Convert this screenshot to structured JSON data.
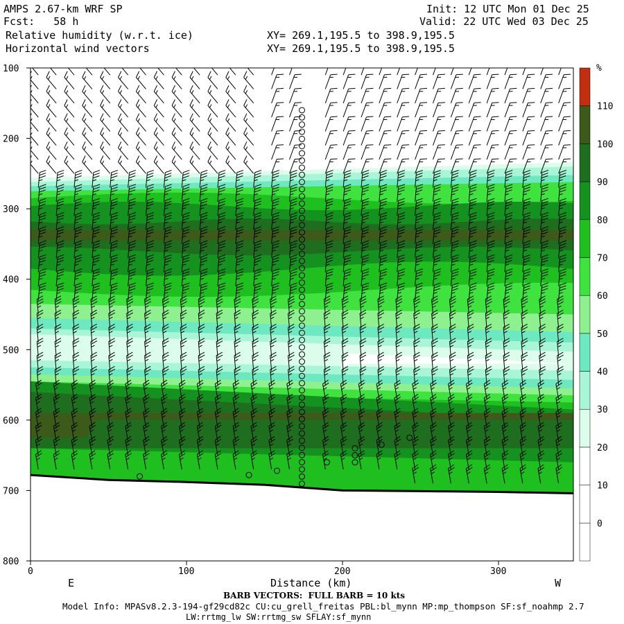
{
  "header": {
    "model": "AMPS 2.67-km WRF SP",
    "fcst": "Fcst:   58 h",
    "init": "Init: 12 UTC Mon 01 Dec 25",
    "valid": "Valid: 22 UTC Wed 03 Dec 25",
    "field1": "Relative humidity (w.r.t. ice)",
    "field2": "Horizontal wind vectors",
    "xy1": "XY= 269.1,195.5 to 398.9,195.5",
    "xy2": "XY= 269.1,195.5 to 398.9,195.5"
  },
  "footer": {
    "xlabel": "Distance (km)",
    "east": "E",
    "west": "W",
    "barb_note": "BARB VECTORS:  FULL BARB = 10 kts",
    "model_info": "Model Info: MPASv8.2.3-194-gf29cd82c CU:cu_grell_freitas PBL:bl_mynn MP:mp_thompson SF:sf_noahmp 2.7",
    "model_info2": "LW:rrtmg_lw SW:rrtmg_sw SFLAY:sf_mynn"
  },
  "chart_data": {
    "type": "cross-section (filled contour + wind barbs)",
    "xlabel": "Distance (km)",
    "xlim": [
      0,
      348
    ],
    "x_ticks": [
      0,
      100,
      200,
      300
    ],
    "ylim": [
      800,
      100
    ],
    "y_ticks": [
      100,
      200,
      300,
      400,
      500,
      600,
      700,
      800
    ],
    "colorbar": {
      "unit": "%",
      "levels": [
        0,
        10,
        20,
        30,
        40,
        50,
        60,
        70,
        80,
        90,
        100,
        110
      ],
      "colors": [
        "#ffffff",
        "#ffffff",
        "#ffffff",
        "#dcfcec",
        "#a8f5d8",
        "#6ee8c0",
        "#8ef08e",
        "#3fe23f",
        "#1fbf1f",
        "#14911e",
        "#1f6e1f",
        "#3c5a19",
        "#c03010"
      ]
    },
    "rh_layers": [
      {
        "level": "100-110",
        "color": "#3c5a19",
        "note": "core near 320-360 hPa"
      },
      {
        "level": "90-100",
        "color": "#1f6e1f",
        "note": "band ~290-380 hPa and 560-640 hPa"
      },
      {
        "level": "30-50",
        "color": "#a8f5d8",
        "note": "dry slot ~480-540 hPa"
      },
      {
        "level": "0-30",
        "color": "#ffffff",
        "note": "above ~260 hPa"
      }
    ],
    "terrain_hpa": [
      {
        "x": 0,
        "p": 678
      },
      {
        "x": 50,
        "p": 685
      },
      {
        "x": 100,
        "p": 688
      },
      {
        "x": 150,
        "p": 692
      },
      {
        "x": 200,
        "p": 700
      },
      {
        "x": 250,
        "p": 701
      },
      {
        "x": 300,
        "p": 702
      },
      {
        "x": 348,
        "p": 704
      }
    ],
    "calm_column_km": 174
  }
}
